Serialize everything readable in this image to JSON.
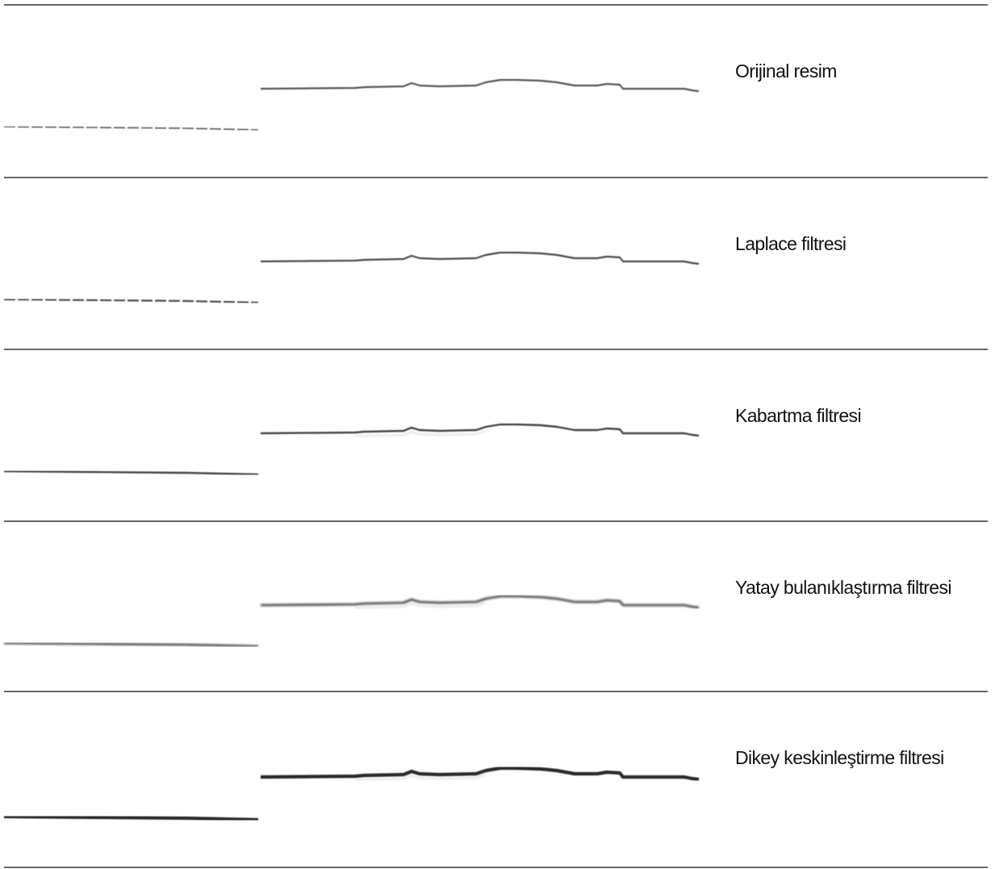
{
  "rows": [
    {
      "label": "Orijinal resim"
    },
    {
      "label": "Laplace filtresi"
    },
    {
      "label": "Kabartma filtresi"
    },
    {
      "label": "Yatay bulanıklaştırma filtresi"
    },
    {
      "label": "Dikey keskinleştirme filtresi"
    }
  ]
}
